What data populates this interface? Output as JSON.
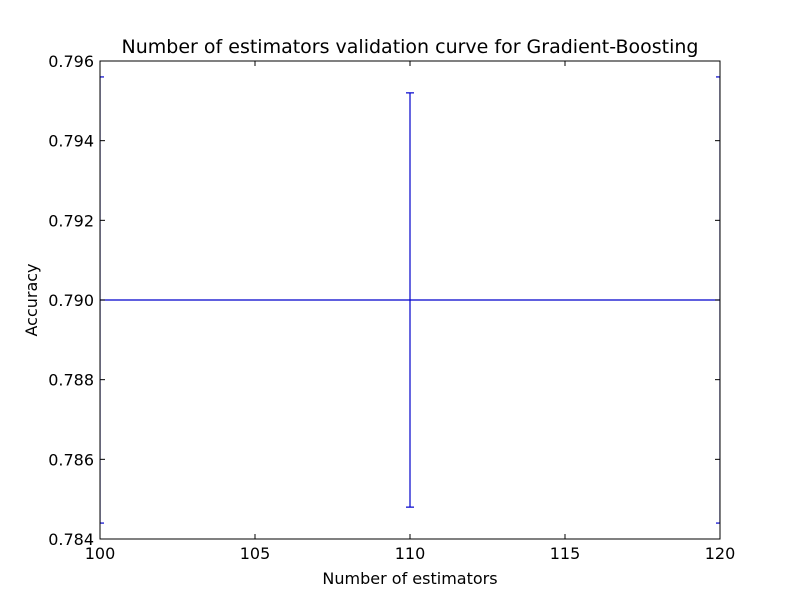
{
  "chart_data": {
    "type": "line",
    "title": "Number of estimators validation curve for Gradient-Boosting",
    "xlabel": "Number of estimators",
    "ylabel": "Accuracy",
    "xlim": [
      100,
      120
    ],
    "ylim": [
      0.784,
      0.796
    ],
    "xticks": [
      "100",
      "105",
      "110",
      "115",
      "120"
    ],
    "yticks": [
      "0.784",
      "0.786",
      "0.788",
      "0.790",
      "0.792",
      "0.794",
      "0.796"
    ],
    "grid": false,
    "legend": "none",
    "series": [
      {
        "x": [
          100,
          110,
          120
        ],
        "y": [
          0.79,
          0.79,
          0.79
        ],
        "yerr": [
          0.0056,
          0.0052,
          0.0056
        ],
        "color": "#0000cc"
      }
    ]
  }
}
